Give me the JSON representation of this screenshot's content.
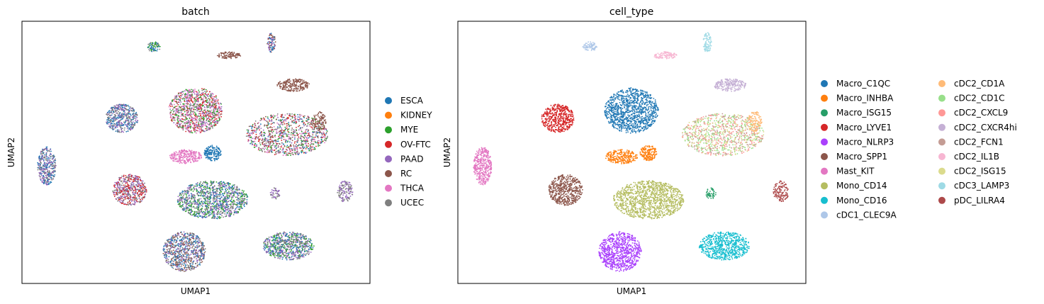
{
  "chart_data": [
    {
      "type": "scatter",
      "title": "batch",
      "xlabel": "UMAP1",
      "ylabel": "UMAP2",
      "legend_position": "right",
      "grid": false,
      "legend": [
        {
          "label": "ESCA",
          "color": "#1f77b4"
        },
        {
          "label": "KIDNEY",
          "color": "#ff7f0e"
        },
        {
          "label": "MYE",
          "color": "#2ca02c"
        },
        {
          "label": "OV-FTC",
          "color": "#d62728"
        },
        {
          "label": "PAAD",
          "color": "#9467bd"
        },
        {
          "label": "RC",
          "color": "#8c564b"
        },
        {
          "label": "THCA",
          "color": "#e377c2"
        },
        {
          "label": "UCEC",
          "color": "#7f7f7f"
        }
      ]
    },
    {
      "type": "scatter",
      "title": "cell_type",
      "xlabel": "UMAP1",
      "ylabel": "UMAP2",
      "legend_position": "right",
      "grid": false,
      "legend": [
        {
          "label": "Macro_C1QC",
          "color": "#1f77b4"
        },
        {
          "label": "Macro_INHBA",
          "color": "#ff7f0e"
        },
        {
          "label": "Macro_ISG15",
          "color": "#279e68"
        },
        {
          "label": "Macro_LYVE1",
          "color": "#d62728"
        },
        {
          "label": "Macro_NLRP3",
          "color": "#aa40fc"
        },
        {
          "label": "Macro_SPP1",
          "color": "#8c564b"
        },
        {
          "label": "Mast_KIT",
          "color": "#e377c2"
        },
        {
          "label": "Mono_CD14",
          "color": "#b5bd61"
        },
        {
          "label": "Mono_CD16",
          "color": "#17becf"
        },
        {
          "label": "cDC1_CLEC9A",
          "color": "#aec7e8"
        },
        {
          "label": "cDC2_CD1A",
          "color": "#ffbb78"
        },
        {
          "label": "cDC2_CD1C",
          "color": "#98df8a"
        },
        {
          "label": "cDC2_CXCL9",
          "color": "#ff9896"
        },
        {
          "label": "cDC2_CXCR4hi",
          "color": "#c5b0d5"
        },
        {
          "label": "cDC2_FCN1",
          "color": "#c49c94"
        },
        {
          "label": "cDC2_IL1B",
          "color": "#f7b6d2"
        },
        {
          "label": "cDC2_ISG15",
          "color": "#dbdb8d"
        },
        {
          "label": "cDC3_LAMP3",
          "color": "#9edae5"
        },
        {
          "label": "pDC_LILRA4",
          "color": "#ad494a"
        }
      ]
    }
  ]
}
